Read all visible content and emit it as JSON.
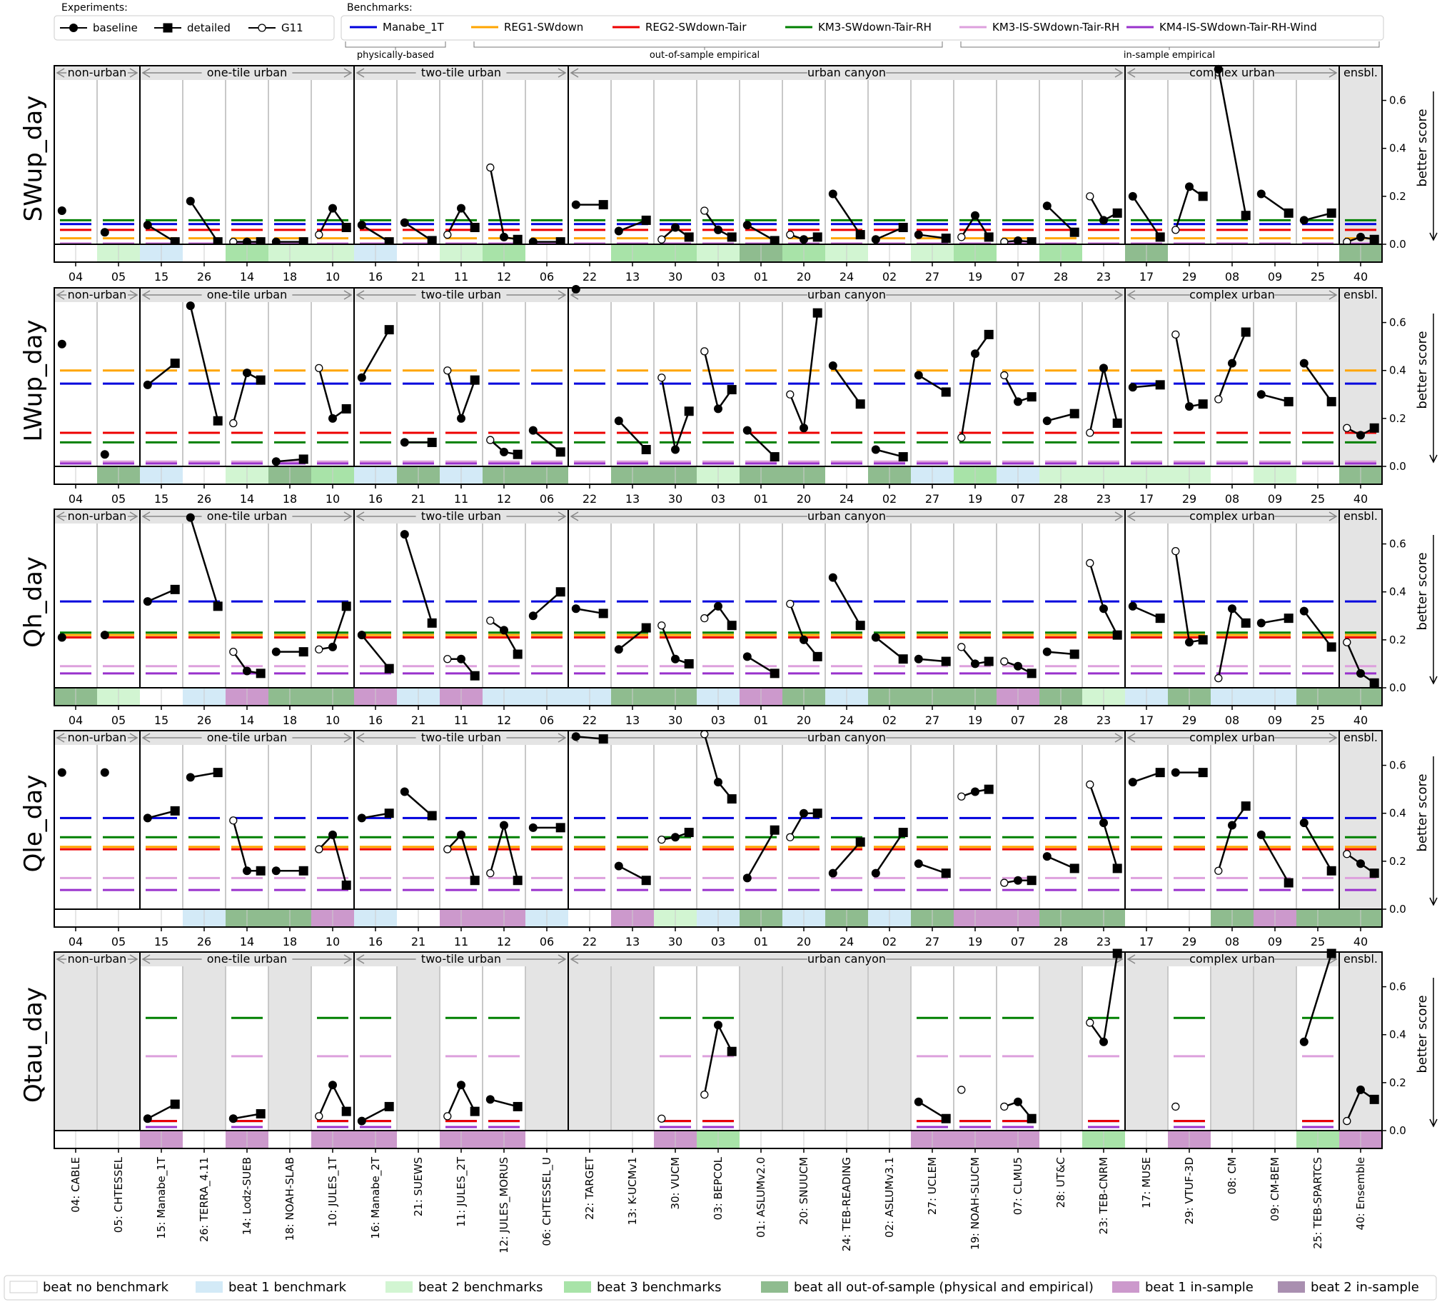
{
  "chart_data": {
    "type": "line",
    "legend_experiments": {
      "title": "Experiments:",
      "items": [
        {
          "name": "baseline",
          "marker": "filled-circle"
        },
        {
          "name": "detailed",
          "marker": "filled-square"
        },
        {
          "name": "G11",
          "marker": "open-circle"
        }
      ]
    },
    "legend_benchmarks": {
      "title": "Benchmarks:",
      "items": [
        {
          "name": "Manabe_1T",
          "color": "#0000dd"
        },
        {
          "name": "REG1-SWdown",
          "color": "#ffa500"
        },
        {
          "name": "REG2-SWdown-Tair",
          "color": "#ee0000"
        },
        {
          "name": "KM3-SWdown-Tair-RH",
          "color": "#008000"
        },
        {
          "name": "KM3-IS-SWdown-Tair-RH",
          "color": "#dda0dd"
        },
        {
          "name": "KM4-IS-SWdown-Tair-RH-Wind",
          "color": "#9932cc"
        }
      ],
      "brackets": [
        "physically-based",
        "out-of-sample empirical",
        "in-sample empirical"
      ]
    },
    "groups": [
      {
        "label": "non-urban",
        "n": 2
      },
      {
        "label": "one-tile urban",
        "n": 5
      },
      {
        "label": "two-tile urban",
        "n": 5
      },
      {
        "label": "urban canyon",
        "n": 13
      },
      {
        "label": "complex urban",
        "n": 5
      },
      {
        "label": "ensbl.",
        "n": 1
      }
    ],
    "models": [
      "04: CABLE",
      "05: CHTESSEL",
      "15: Manabe_1T",
      "26: TERRA_4.11",
      "14: Lodz-SUEB",
      "18: NOAH-SLAB",
      "10: JULES_1T",
      "16: Manabe_2T",
      "21: SUEWS",
      "11: JULES_2T",
      "12: JULES_MORUS",
      "06: CHTESSEL_U",
      "22: TARGET",
      "13: K-UCMv1",
      "30: VUCM",
      "03: BEPCOL",
      "01: ASLUMv2.0",
      "20: SNUUCM",
      "24: TEB-READING",
      "02: ASLUMv3.1",
      "27: UCLEM",
      "19: NOAH-SLUCM",
      "07: CLMU5",
      "28: UT&C",
      "23: TEB-CNRM",
      "17: MUSE",
      "29: VTUF-3D",
      "08: CM",
      "09: CM-BEM",
      "25: TEB-SPARTCS",
      "40: Ensemble"
    ],
    "codes": [
      "04",
      "05",
      "15",
      "26",
      "14",
      "18",
      "10",
      "16",
      "21",
      "11",
      "12",
      "06",
      "22",
      "13",
      "30",
      "03",
      "01",
      "20",
      "24",
      "02",
      "27",
      "19",
      "07",
      "28",
      "23",
      "17",
      "29",
      "08",
      "09",
      "25",
      "40"
    ],
    "ylim": [
      0,
      0.7
    ],
    "yticks": [
      "0.0",
      "0.2",
      "0.4",
      "0.6"
    ],
    "y_right_label": "better score",
    "panels": [
      {
        "name": "SWup_day",
        "bench": [
          0.084,
          0.025,
          0.06,
          0.1,
          0.004,
          0.0
        ],
        "baseline": [
          0.14,
          0.05,
          0.08,
          0.18,
          0.01,
          0.01,
          0.15,
          0.08,
          0.09,
          0.15,
          0.03,
          0.01,
          0.165,
          0.055,
          0.07,
          0.06,
          0.08,
          0.02,
          0.21,
          0.02,
          0.04,
          0.12,
          0.015,
          0.16,
          0.1,
          0.2,
          0.24,
          0.73,
          0.21,
          0.1,
          0.03
        ],
        "detailed": [
          null,
          null,
          0.01,
          0.01,
          0.01,
          0.01,
          0.07,
          0.01,
          0.015,
          0.07,
          0.02,
          0.01,
          0.165,
          0.1,
          0.03,
          0.03,
          0.015,
          0.03,
          0.04,
          0.07,
          0.025,
          0.03,
          0.01,
          0.05,
          0.13,
          0.03,
          0.2,
          0.12,
          0.13,
          0.13,
          0.02
        ],
        "g11": [
          null,
          null,
          null,
          null,
          0.01,
          null,
          0.04,
          null,
          null,
          0.04,
          0.32,
          null,
          null,
          null,
          0.02,
          0.14,
          null,
          0.04,
          null,
          null,
          null,
          0.03,
          0.01,
          null,
          0.2,
          null,
          0.06,
          null,
          null,
          null,
          0.01
        ],
        "shade": [
          0,
          2,
          1,
          0,
          3,
          2,
          2,
          1,
          0,
          2,
          3,
          0,
          0,
          3,
          3,
          2,
          4,
          3,
          2,
          0,
          2,
          3,
          0,
          3,
          0,
          4,
          0,
          0,
          0,
          0,
          4
        ],
        "missing": []
      },
      {
        "name": "LWup_day",
        "bench": [
          0.345,
          0.4,
          0.14,
          0.1,
          0.02,
          0.012
        ],
        "baseline": [
          0.51,
          0.05,
          0.34,
          0.67,
          0.39,
          0.02,
          0.2,
          0.37,
          0.1,
          0.2,
          0.06,
          0.15,
          0.74,
          0.19,
          0.07,
          0.24,
          0.15,
          0.16,
          0.42,
          0.07,
          0.38,
          0.47,
          0.27,
          0.19,
          0.41,
          0.33,
          0.25,
          0.43,
          0.3,
          0.43,
          0.13
        ],
        "detailed": [
          null,
          null,
          0.43,
          0.19,
          0.36,
          0.03,
          0.24,
          0.57,
          0.1,
          0.36,
          0.05,
          0.06,
          null,
          0.07,
          0.23,
          0.32,
          0.04,
          0.64,
          0.26,
          0.04,
          0.31,
          0.55,
          0.29,
          0.22,
          0.18,
          0.34,
          0.26,
          0.56,
          0.27,
          0.27,
          0.16
        ],
        "g11": [
          null,
          null,
          null,
          null,
          0.18,
          null,
          0.41,
          null,
          null,
          0.4,
          0.11,
          null,
          null,
          null,
          0.37,
          0.48,
          null,
          0.3,
          null,
          null,
          null,
          0.12,
          0.38,
          null,
          0.14,
          null,
          0.55,
          0.28,
          null,
          null,
          0.16
        ],
        "shade": [
          0,
          4,
          1,
          0,
          2,
          4,
          3,
          1,
          4,
          1,
          4,
          4,
          0,
          4,
          4,
          2,
          4,
          4,
          0,
          4,
          1,
          3,
          1,
          2,
          2,
          2,
          2,
          0,
          2,
          0,
          4
        ],
        "missing": []
      },
      {
        "name": "Qh_day",
        "bench": [
          0.36,
          0.22,
          0.21,
          0.23,
          0.09,
          0.06
        ],
        "baseline": [
          0.21,
          0.22,
          0.36,
          0.71,
          0.07,
          0.15,
          0.17,
          0.22,
          0.64,
          0.12,
          0.24,
          0.3,
          0.33,
          0.16,
          0.12,
          0.34,
          0.13,
          0.2,
          0.46,
          0.21,
          0.12,
          0.1,
          0.09,
          0.15,
          0.33,
          0.34,
          0.19,
          0.33,
          0.27,
          0.32,
          0.06
        ],
        "detailed": [
          null,
          null,
          0.41,
          0.34,
          0.06,
          0.15,
          0.34,
          0.08,
          0.27,
          0.05,
          0.14,
          0.4,
          0.31,
          0.25,
          0.1,
          0.26,
          0.06,
          0.13,
          0.26,
          0.12,
          0.11,
          0.11,
          0.06,
          0.14,
          0.22,
          0.29,
          0.2,
          0.27,
          0.29,
          0.17,
          0.02
        ],
        "g11": [
          null,
          null,
          null,
          null,
          0.15,
          null,
          0.16,
          null,
          null,
          0.12,
          0.28,
          null,
          null,
          null,
          0.26,
          0.29,
          null,
          0.35,
          null,
          null,
          null,
          0.17,
          0.11,
          null,
          0.52,
          null,
          0.57,
          0.04,
          null,
          null,
          0.19
        ],
        "shade": [
          4,
          2,
          0,
          1,
          5,
          4,
          4,
          5,
          1,
          5,
          1,
          1,
          1,
          4,
          4,
          1,
          5,
          4,
          1,
          4,
          4,
          4,
          5,
          4,
          2,
          1,
          4,
          1,
          1,
          4,
          4
        ],
        "missing": []
      },
      {
        "name": "Qle_day",
        "bench": [
          0.38,
          0.26,
          0.25,
          0.3,
          0.13,
          0.08
        ],
        "baseline": [
          0.57,
          0.57,
          0.38,
          0.55,
          0.16,
          0.16,
          0.31,
          0.38,
          0.49,
          0.31,
          0.35,
          0.34,
          0.72,
          0.18,
          0.3,
          0.53,
          0.13,
          0.4,
          0.15,
          0.15,
          0.19,
          0.49,
          0.12,
          0.22,
          0.36,
          0.53,
          0.57,
          0.35,
          0.31,
          0.36,
          0.19
        ],
        "detailed": [
          null,
          null,
          0.41,
          0.57,
          0.16,
          0.16,
          0.1,
          0.4,
          0.39,
          0.12,
          0.12,
          0.34,
          0.71,
          0.12,
          0.32,
          0.46,
          0.33,
          0.4,
          0.28,
          0.32,
          0.15,
          0.5,
          0.12,
          0.17,
          0.17,
          0.57,
          0.57,
          0.43,
          0.11,
          0.16,
          0.15
        ],
        "g11": [
          null,
          null,
          null,
          null,
          0.37,
          null,
          0.25,
          null,
          null,
          0.25,
          0.15,
          null,
          null,
          null,
          0.29,
          0.73,
          null,
          0.3,
          null,
          null,
          null,
          0.47,
          0.11,
          null,
          0.52,
          null,
          null,
          0.16,
          null,
          null,
          0.23
        ],
        "shade": [
          0,
          0,
          0,
          1,
          4,
          4,
          5,
          1,
          0,
          5,
          5,
          1,
          0,
          5,
          2,
          1,
          4,
          1,
          4,
          1,
          4,
          5,
          5,
          4,
          4,
          0,
          0,
          4,
          5,
          4,
          4
        ],
        "missing": []
      },
      {
        "name": "Qtau_day",
        "bench": [
          0.04,
          null,
          0.04,
          0.47,
          0.31,
          0.015
        ],
        "baseline": [
          null,
          null,
          0.05,
          null,
          0.05,
          null,
          0.19,
          0.04,
          null,
          0.19,
          0.13,
          null,
          null,
          null,
          null,
          0.44,
          null,
          null,
          null,
          null,
          0.12,
          null,
          0.12,
          null,
          0.37,
          null,
          null,
          null,
          null,
          0.37,
          0.17
        ],
        "detailed": [
          null,
          null,
          0.11,
          null,
          0.07,
          null,
          0.08,
          0.1,
          null,
          0.08,
          0.1,
          null,
          null,
          null,
          null,
          0.33,
          null,
          null,
          null,
          null,
          0.05,
          null,
          0.05,
          null,
          0.74,
          null,
          null,
          null,
          null,
          0.74,
          0.13
        ],
        "g11": [
          null,
          null,
          null,
          null,
          null,
          null,
          0.06,
          null,
          null,
          0.06,
          null,
          null,
          null,
          null,
          0.05,
          0.15,
          null,
          null,
          null,
          null,
          null,
          0.17,
          0.1,
          null,
          0.45,
          null,
          0.1,
          null,
          null,
          null,
          0.04
        ],
        "shade": [
          0,
          0,
          5,
          0,
          5,
          0,
          5,
          5,
          0,
          5,
          5,
          0,
          0,
          0,
          5,
          3,
          0,
          0,
          0,
          0,
          5,
          5,
          5,
          0,
          3,
          0,
          5,
          0,
          0,
          3,
          5
        ],
        "missing": [
          0,
          1,
          3,
          5,
          8,
          11,
          12,
          13,
          16,
          17,
          18,
          19,
          23,
          25,
          27,
          28,
          30
        ],
        "bench_cols": [
          2,
          4,
          6,
          7,
          9,
          10,
          14,
          15,
          20,
          21,
          22,
          24,
          26,
          29
        ]
      }
    ],
    "shade_legend": [
      "beat no benchmark",
      "beat 1 benchmark",
      "beat 2 benchmarks",
      "beat 3 benchmarks",
      "beat all out-of-sample (physical and empirical)",
      "beat 1 in-sample",
      "beat 2 in-sample"
    ],
    "shade_colors": [
      "#ffffff",
      "#d3eaf7",
      "#d2f5d2",
      "#a8e3a8",
      "#8fbc8f",
      "#cc99cc",
      "#a98fb0"
    ]
  }
}
